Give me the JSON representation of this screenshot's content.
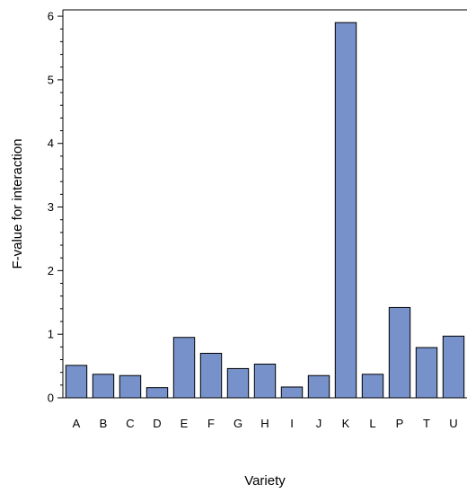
{
  "chart_data": {
    "type": "bar",
    "categories": [
      "A",
      "B",
      "C",
      "D",
      "E",
      "F",
      "G",
      "H",
      "I",
      "J",
      "K",
      "L",
      "P",
      "T",
      "U"
    ],
    "values": [
      0.51,
      0.37,
      0.35,
      0.16,
      0.95,
      0.7,
      0.46,
      0.53,
      0.17,
      0.35,
      5.9,
      0.37,
      1.42,
      0.79,
      0.97
    ],
    "xlabel": "Variety",
    "ylabel": "F-value for interaction",
    "ylim": [
      0,
      6.1
    ],
    "yticks": [
      "0",
      "1",
      "2",
      "3",
      "4",
      "5",
      "6"
    ],
    "grid": false,
    "bar_color": "#7791cb"
  }
}
